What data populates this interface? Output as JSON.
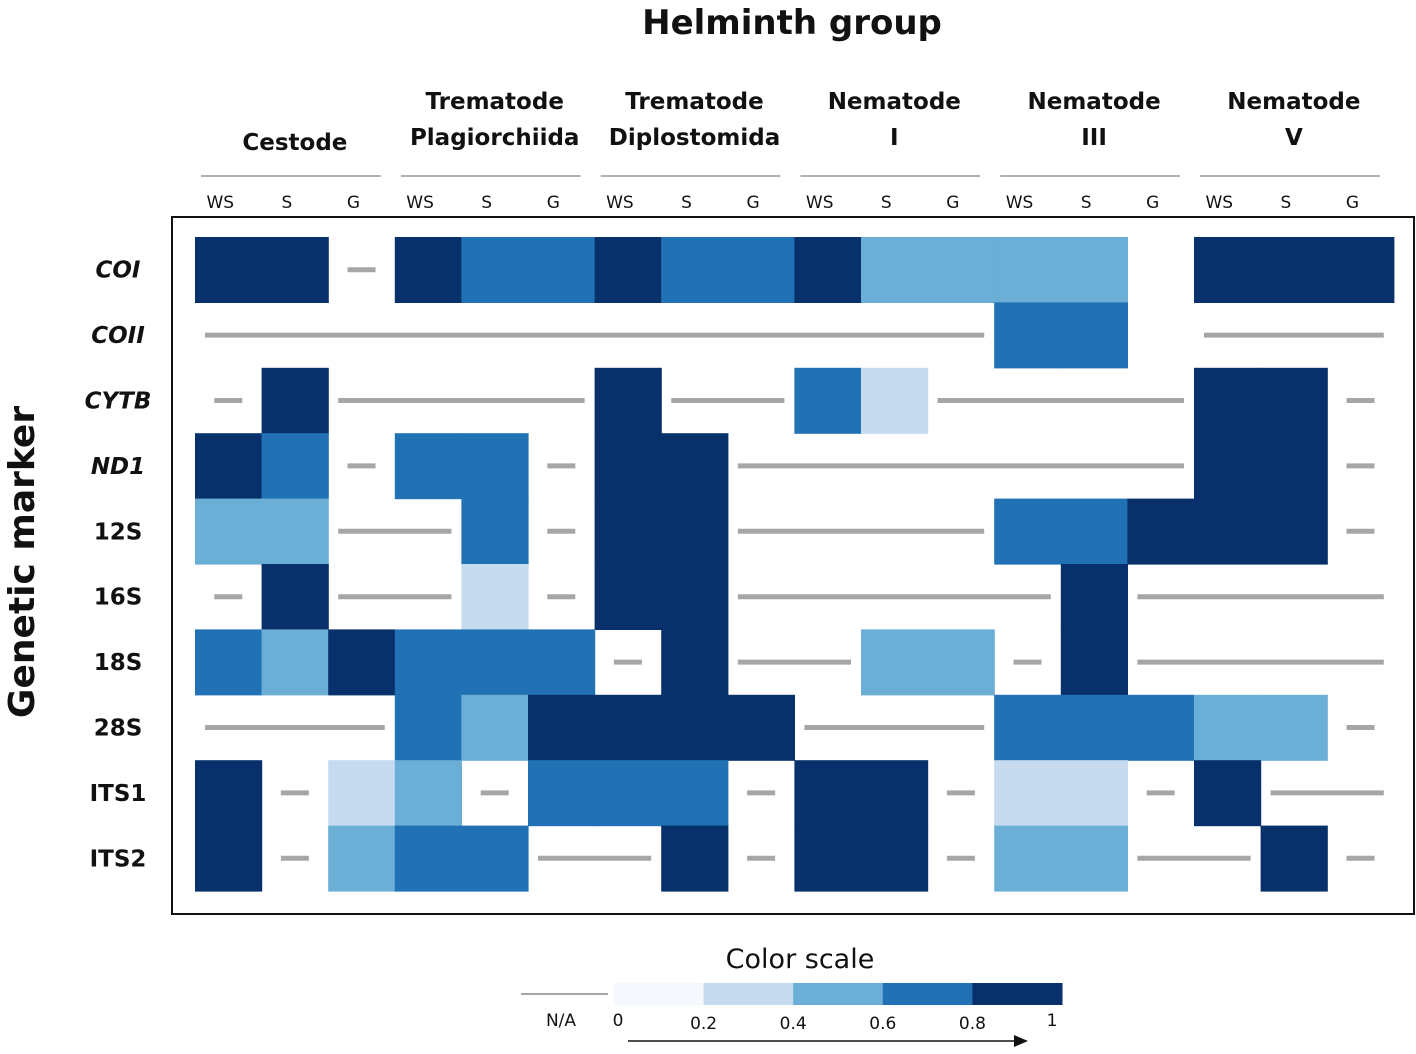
{
  "chart_data": {
    "type": "heatmap",
    "title": "Helminth group",
    "ylabel": "Genetic marker",
    "groups": [
      {
        "name": [
          "Cestode"
        ]
      },
      {
        "name": [
          "Trematode",
          "Plagiorchiida"
        ]
      },
      {
        "name": [
          "Trematode",
          "Diplostomida"
        ]
      },
      {
        "name": [
          "Nematode",
          "I"
        ]
      },
      {
        "name": [
          "Nematode",
          "III"
        ]
      },
      {
        "name": [
          "Nematode",
          "V"
        ]
      }
    ],
    "subcolumns": [
      "WS",
      "S",
      "G"
    ],
    "rows": [
      {
        "label": "COI",
        "italic": true,
        "values": [
          1,
          1,
          null,
          1,
          0.6,
          0.6,
          1,
          0.6,
          0.6,
          1,
          0.4,
          0.4,
          0.4,
          0.4,
          null,
          1,
          1,
          1
        ]
      },
      {
        "label": "COII",
        "italic": true,
        "values": [
          null,
          null,
          null,
          null,
          null,
          null,
          null,
          null,
          null,
          null,
          null,
          null,
          0.6,
          0.6,
          null,
          null,
          null,
          null
        ]
      },
      {
        "label": "CYTB",
        "italic": true,
        "values": [
          null,
          1,
          null,
          null,
          null,
          null,
          1,
          null,
          null,
          0.6,
          0.2,
          null,
          null,
          null,
          null,
          1,
          1,
          null
        ]
      },
      {
        "label": "ND1",
        "italic": true,
        "values": [
          1,
          0.6,
          null,
          0.6,
          0.6,
          null,
          1,
          1,
          null,
          null,
          null,
          null,
          null,
          null,
          null,
          1,
          1,
          null
        ]
      },
      {
        "label": "12S",
        "italic": false,
        "values": [
          0.4,
          0.4,
          null,
          null,
          0.6,
          null,
          1,
          1,
          null,
          null,
          null,
          null,
          0.6,
          0.6,
          1,
          1,
          1,
          null
        ]
      },
      {
        "label": "16S",
        "italic": false,
        "values": [
          null,
          1,
          null,
          null,
          0.2,
          null,
          1,
          1,
          null,
          null,
          null,
          null,
          null,
          1,
          null,
          null,
          null,
          null
        ]
      },
      {
        "label": "18S",
        "italic": false,
        "values": [
          0.6,
          0.4,
          1,
          0.6,
          0.6,
          0.6,
          null,
          1,
          null,
          null,
          0.4,
          0.4,
          null,
          1,
          null,
          null,
          null,
          null
        ]
      },
      {
        "label": "28S",
        "italic": false,
        "values": [
          null,
          null,
          null,
          0.6,
          0.4,
          1,
          1,
          1,
          1,
          null,
          null,
          null,
          0.6,
          0.6,
          0.6,
          0.4,
          0.4,
          null
        ]
      },
      {
        "label": "ITS1",
        "italic": false,
        "values": [
          1,
          null,
          0.2,
          0.4,
          null,
          0.6,
          0.6,
          0.6,
          null,
          1,
          1,
          null,
          0.2,
          0.2,
          null,
          1,
          null,
          null
        ]
      },
      {
        "label": "ITS2",
        "italic": false,
        "values": [
          1,
          null,
          0.4,
          0.6,
          0.6,
          null,
          null,
          1,
          null,
          1,
          1,
          null,
          0.4,
          0.4,
          null,
          null,
          1,
          null
        ]
      }
    ],
    "na_segments": [
      [
        [
          2,
          2
        ]
      ],
      [
        [
          0,
          11
        ],
        [
          15,
          17
        ]
      ],
      [
        [
          0,
          0
        ],
        [
          2,
          5
        ],
        [
          7,
          8
        ],
        [
          11,
          14
        ],
        [
          17,
          17
        ]
      ],
      [
        [
          2,
          2
        ],
        [
          5,
          5
        ],
        [
          8,
          14
        ],
        [
          17,
          17
        ]
      ],
      [
        [
          2,
          3
        ],
        [
          5,
          5
        ],
        [
          8,
          11
        ],
        [
          17,
          17
        ]
      ],
      [
        [
          0,
          0
        ],
        [
          2,
          3
        ],
        [
          5,
          5
        ],
        [
          8,
          12
        ],
        [
          14,
          17
        ]
      ],
      [
        [
          6,
          6
        ],
        [
          8,
          9
        ],
        [
          12,
          12
        ],
        [
          14,
          17
        ]
      ],
      [
        [
          0,
          2
        ],
        [
          9,
          11
        ],
        [
          17,
          17
        ]
      ],
      [
        [
          1,
          1
        ],
        [
          4,
          4
        ],
        [
          8,
          8
        ],
        [
          11,
          11
        ],
        [
          14,
          14
        ],
        [
          16,
          17
        ]
      ],
      [
        [
          1,
          1
        ],
        [
          5,
          6
        ],
        [
          8,
          8
        ],
        [
          11,
          11
        ],
        [
          14,
          15
        ],
        [
          17,
          17
        ]
      ]
    ],
    "color_scale": {
      "title": "Color scale",
      "na_label": "N/A",
      "ticks": [
        "0",
        "0.2",
        "0.4",
        "0.6",
        "0.8",
        "1"
      ],
      "bins": [
        {
          "value": 0,
          "color": "#f5f9ff"
        },
        {
          "value": 0.2,
          "color": "#c6dbef"
        },
        {
          "value": 0.4,
          "color": "#6baed6"
        },
        {
          "value": 0.6,
          "color": "#2171b5"
        },
        {
          "value": 1,
          "color": "#08306b"
        }
      ],
      "na_color": "#a6a6a6"
    }
  }
}
